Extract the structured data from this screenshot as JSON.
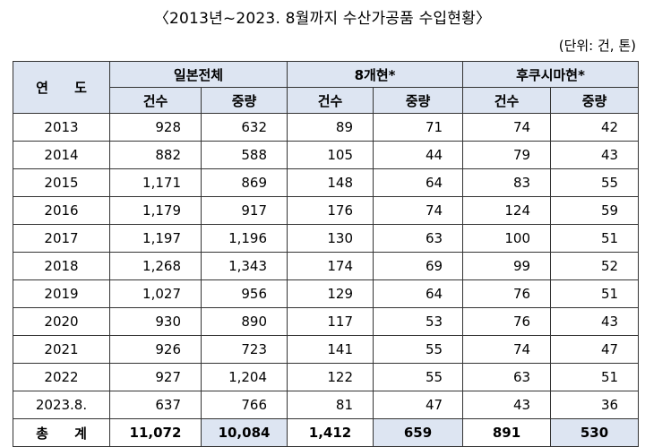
{
  "title": "〈2013년~2023. 8월까지 수산가공품 수입현황〉",
  "unit": "(단위: 건, 톤)",
  "header": {
    "year": "연 도",
    "groups": [
      "일본전체",
      "8개현*",
      "후쿠시마현*"
    ],
    "sub": [
      "건수",
      "중량",
      "건수",
      "중량",
      "건수",
      "중량"
    ]
  },
  "rows": [
    {
      "year": "2013",
      "v": [
        "928",
        "632",
        "89",
        "71",
        "74",
        "42"
      ]
    },
    {
      "year": "2014",
      "v": [
        "882",
        "588",
        "105",
        "44",
        "79",
        "43"
      ]
    },
    {
      "year": "2015",
      "v": [
        "1,171",
        "869",
        "148",
        "64",
        "83",
        "55"
      ]
    },
    {
      "year": "2016",
      "v": [
        "1,179",
        "917",
        "176",
        "74",
        "124",
        "59"
      ]
    },
    {
      "year": "2017",
      "v": [
        "1,197",
        "1,196",
        "130",
        "63",
        "100",
        "51"
      ]
    },
    {
      "year": "2018",
      "v": [
        "1,268",
        "1,343",
        "174",
        "69",
        "99",
        "52"
      ]
    },
    {
      "year": "2019",
      "v": [
        "1,027",
        "956",
        "129",
        "64",
        "76",
        "51"
      ]
    },
    {
      "year": "2020",
      "v": [
        "930",
        "890",
        "117",
        "53",
        "76",
        "43"
      ]
    },
    {
      "year": "2021",
      "v": [
        "926",
        "723",
        "141",
        "55",
        "74",
        "47"
      ]
    },
    {
      "year": "2022",
      "v": [
        "927",
        "1,204",
        "122",
        "55",
        "63",
        "51"
      ]
    },
    {
      "year": "2023.8.",
      "v": [
        "637",
        "766",
        "81",
        "47",
        "43",
        "36"
      ]
    }
  ],
  "total": {
    "year": "총 계",
    "v": [
      "11,072",
      "10,084",
      "1,412",
      "659",
      "891",
      "530"
    ]
  }
}
